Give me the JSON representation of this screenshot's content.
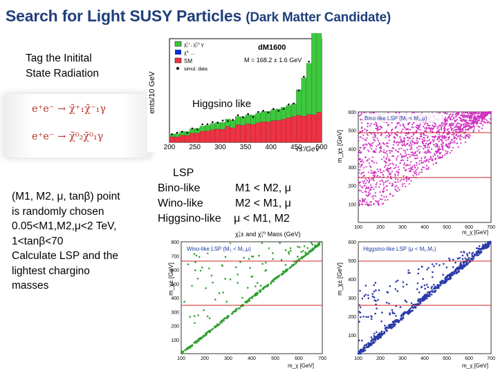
{
  "title": {
    "main": "Search for Light SUSY Particles ",
    "paren": "(Dark Matter Candidate)"
  },
  "isr": {
    "line1": "Tag the Initital",
    "line2": "State Radiation"
  },
  "formulas": [
    {
      "lhs": "e⁺e⁻",
      "rhs": "χ̃⁺₁χ̃⁻₁γ"
    },
    {
      "lhs": "e⁺e⁻",
      "rhs": "χ̃⁰₂χ̃⁰₁γ"
    }
  ],
  "higgsino_label": "Higgsino like",
  "scan_text": {
    "lines": [
      "(M1, M2, μ, tanβ)  point",
      "is randomly chosen",
      "0.05<M1,M2,μ<2 TeV,",
      "1<tanβ<70",
      "Calculate LSP and the",
      "lightest chargino",
      "masses"
    ]
  },
  "lsp": {
    "header": "LSP",
    "rows": [
      {
        "name": "Bino-like",
        "cond": "M1  <  M2,  μ"
      },
      {
        "name": "Wino-like",
        "cond": "M2  <  M1,  μ"
      },
      {
        "name": "Higgsino-like",
        "cond": "μ  <  M1,  M2"
      }
    ]
  },
  "histogram": {
    "ylabel": "ents/10 GeV",
    "xlabel": "√s'/GeV",
    "dataset": "dM1600",
    "annotation": "M = 168.2 ± 1.6 GeV",
    "legend": [
      "χ̃₁⁺, χ̃₂⁰ γ",
      "χ̃⁺ ...",
      "SM",
      "simul. data"
    ],
    "x_ticks": [
      "200",
      "250",
      "300",
      "350",
      "400",
      "450",
      "500"
    ],
    "colors": {
      "signal": "#3ec83e",
      "sm": "#ee3344",
      "data": "#1a1a1a",
      "blue": "#1030c8"
    }
  },
  "scatter_labels": {
    "bino": "Bino-like LSP (M₁ < M₂,μ)",
    "wino": "Wino-like LSP (M₂ < M₁,μ)",
    "higgsino": "Higgsino-like LSP (μ < M₁,M₂)",
    "axis_x": "m_χ [GeV]",
    "axis_y": "m_χ± [GeV]",
    "mass_label": "χ̃₁± and χ̃₁⁰  Mass (GeV)",
    "colors": {
      "bino": "#d030c0",
      "wino": "#30a030",
      "higgsino": "#2a3aa8",
      "line": "#cc2222"
    }
  }
}
